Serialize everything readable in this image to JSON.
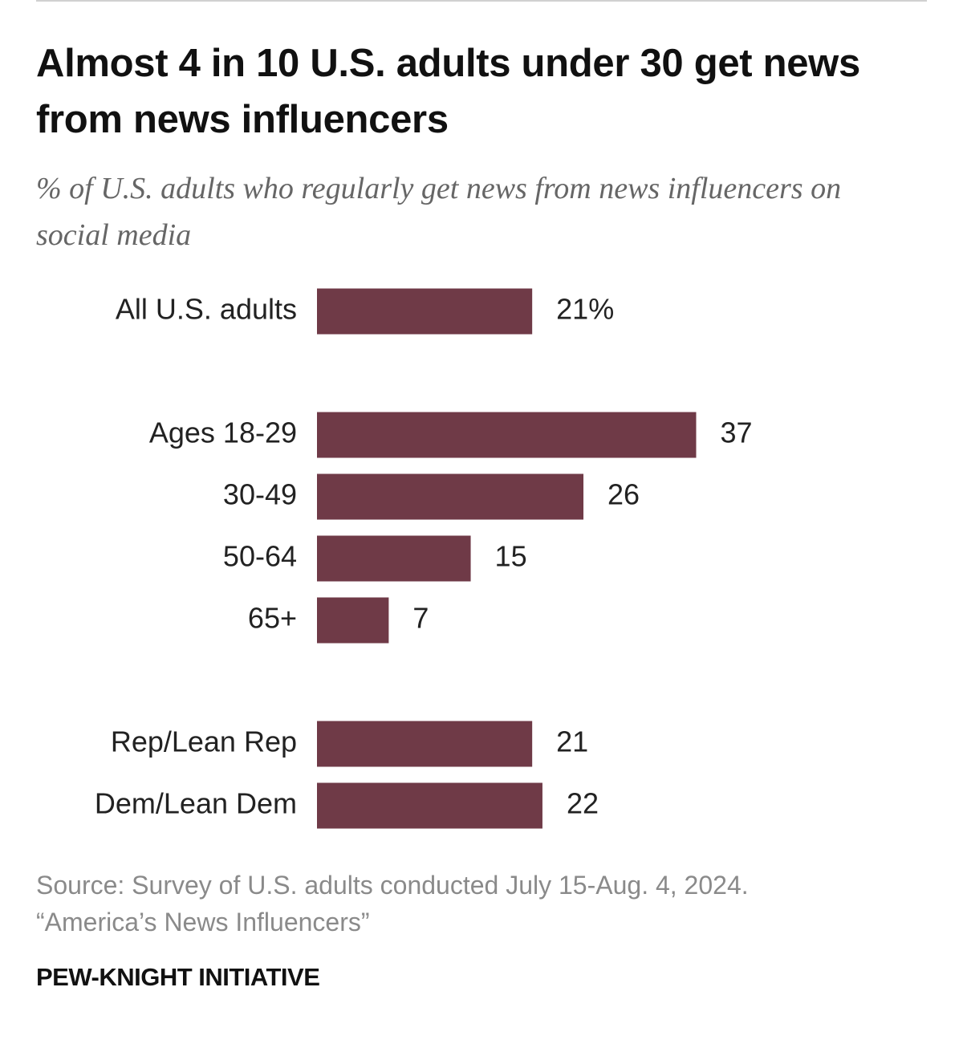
{
  "chart_data": {
    "type": "bar",
    "orientation": "horizontal",
    "title": "Almost 4 in 10 U.S. adults under 30 get news from news influencers",
    "subtitle": "% of U.S. adults who regularly get news from news influencers on social media",
    "categories": [
      "All U.S. adults",
      "Ages 18-29",
      "30-49",
      "50-64",
      "65+",
      "Rep/Lean Rep",
      "Dem/Lean Dem"
    ],
    "values": [
      21,
      37,
      26,
      15,
      7,
      21,
      22
    ],
    "value_labels": [
      "21%",
      "37",
      "26",
      "15",
      "7",
      "21",
      "22"
    ],
    "color": "#6f3a47",
    "source": "Source: Survey of U.S. adults conducted July 15-Aug. 4, 2024.",
    "report": "“America’s News Influencers”",
    "footer": "PEW-KNIGHT INITIATIVE"
  }
}
